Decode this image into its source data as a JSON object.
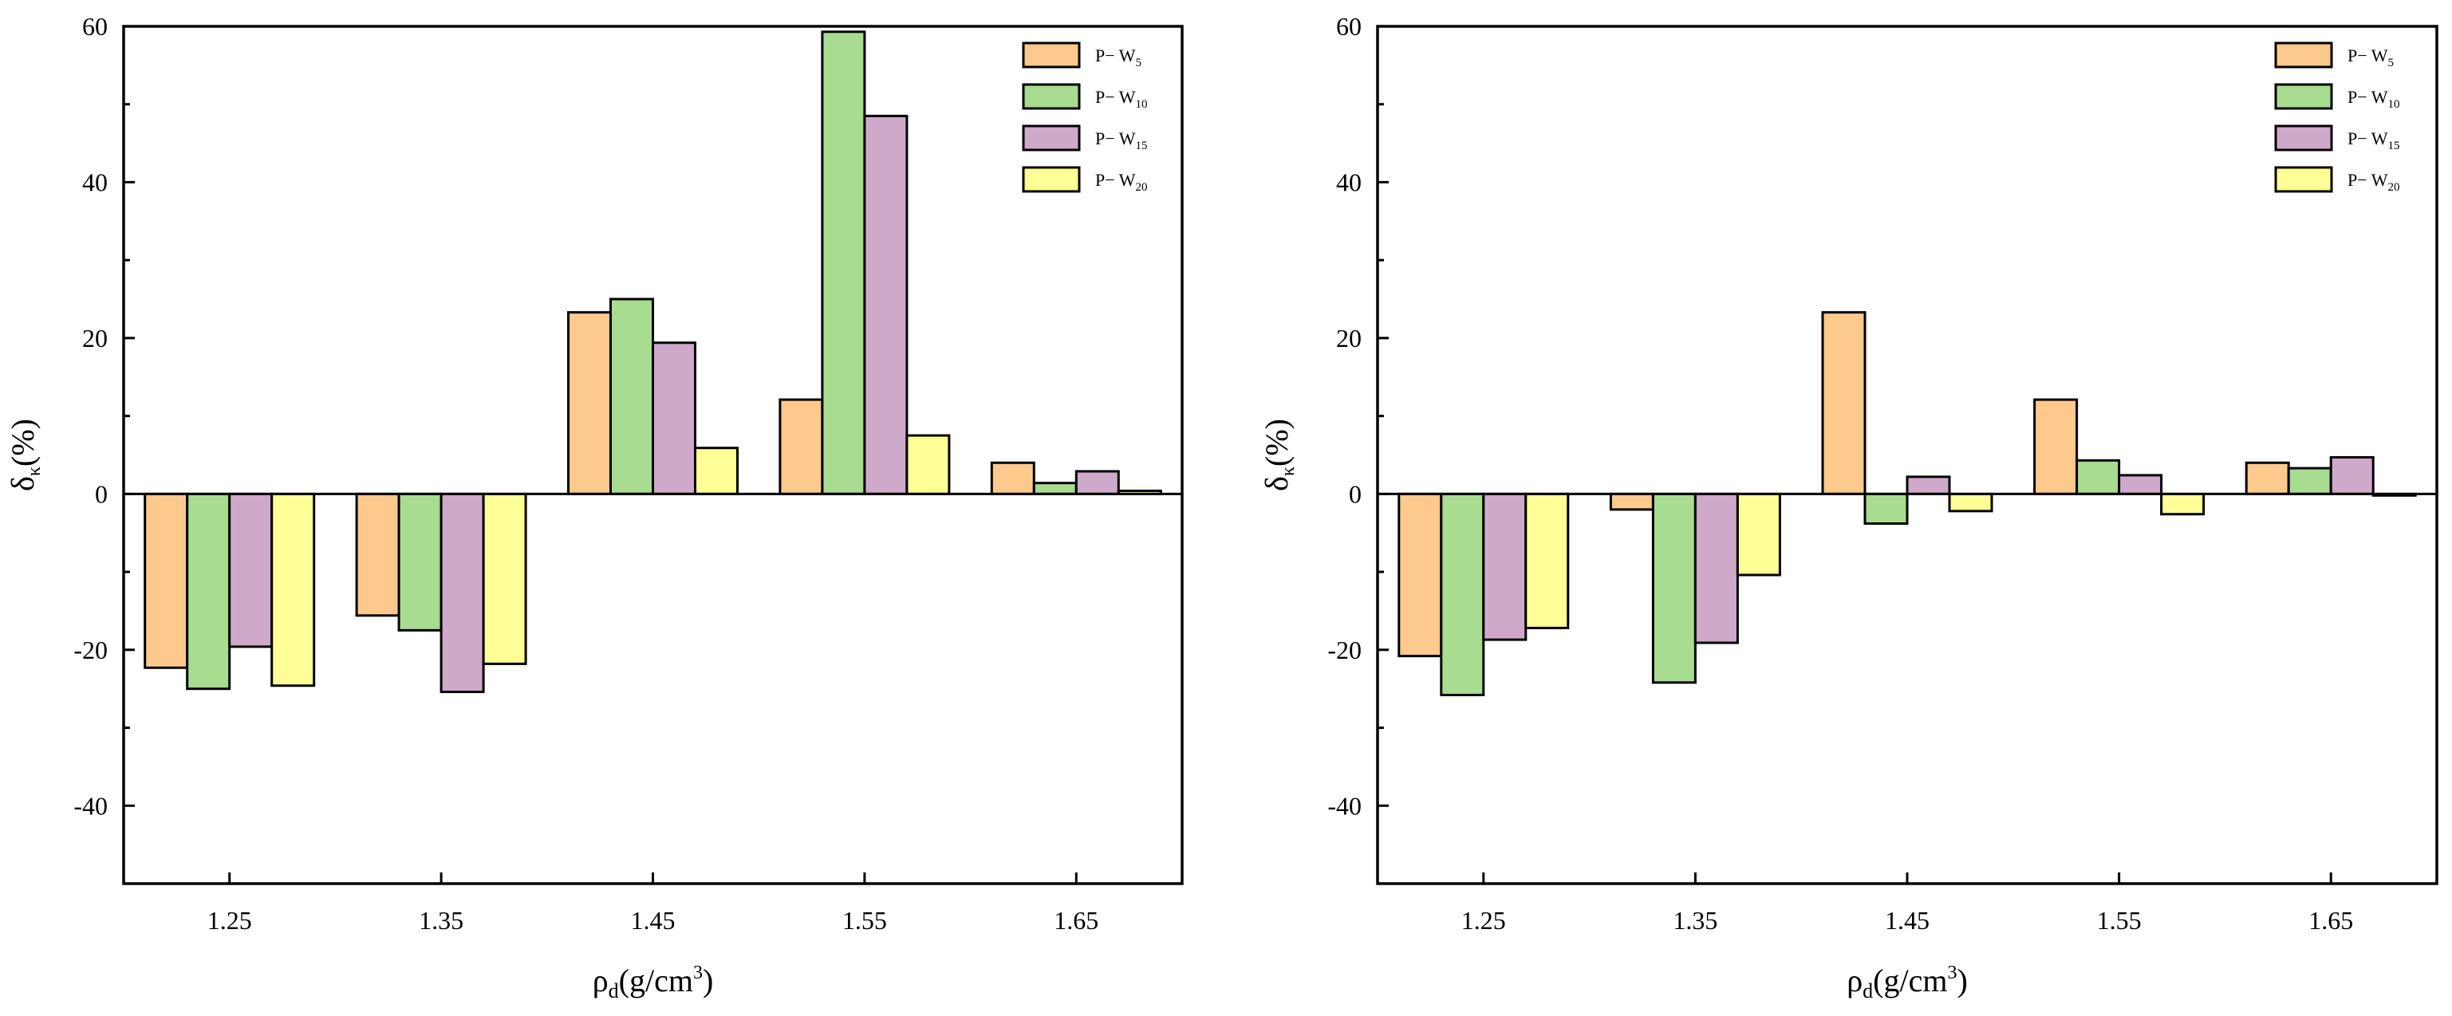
{
  "colors": {
    "P-W5": "#fdc98c",
    "P-W10": "#a8dc90",
    "P-W15": "#cfa9c9",
    "P-W20": "#fefe96",
    "axis": "#000000"
  },
  "chart_data": [
    {
      "type": "bar",
      "title": "",
      "xlabel": "ρd(g/cm3)",
      "xlabel_parts": {
        "base": "ρ",
        "sub": "d",
        "unit": "(g/cm",
        "sup": "3",
        "close": ")"
      },
      "ylabel": "δκ(%)",
      "ylabel_parts": {
        "base": "δ",
        "sub": "κ",
        "rest": "(%)"
      },
      "ylim": [
        -50,
        60
      ],
      "yticks": [
        -40,
        -20,
        0,
        20,
        40,
        60
      ],
      "categories": [
        "1.25",
        "1.35",
        "1.45",
        "1.55",
        "1.65"
      ],
      "legend_position": "top-right",
      "series": [
        {
          "name": "P-W5",
          "label_base": "P− W",
          "label_sub": "5",
          "color_key": "P-W5",
          "values": [
            -22.3,
            -15.6,
            23.3,
            12.1,
            4.0
          ]
        },
        {
          "name": "P-W10",
          "label_base": "P− W",
          "label_sub": "10",
          "color_key": "P-W10",
          "values": [
            -25.0,
            -17.5,
            25.0,
            59.3,
            1.4
          ]
        },
        {
          "name": "P-W15",
          "label_base": "P− W",
          "label_sub": "15",
          "color_key": "P-W15",
          "values": [
            -19.6,
            -25.4,
            19.4,
            48.5,
            2.9
          ]
        },
        {
          "name": "P-W20",
          "label_base": "P− W",
          "label_sub": "20",
          "color_key": "P-W20",
          "values": [
            -24.6,
            -21.8,
            5.9,
            7.5,
            0.4
          ]
        }
      ]
    },
    {
      "type": "bar",
      "title": "",
      "xlabel": "ρd(g/cm3)",
      "xlabel_parts": {
        "base": "ρ",
        "sub": "d",
        "unit": "(g/cm",
        "sup": "3",
        "close": ")"
      },
      "ylabel": "δκ(%)",
      "ylabel_parts": {
        "base": "δ",
        "sub": "κ",
        "rest": "(%)"
      },
      "ylim": [
        -50,
        60
      ],
      "yticks": [
        -40,
        -20,
        0,
        20,
        40,
        60
      ],
      "categories": [
        "1.25",
        "1.35",
        "1.45",
        "1.55",
        "1.65"
      ],
      "legend_position": "top-right",
      "series": [
        {
          "name": "P-W5",
          "label_base": "P− W",
          "label_sub": "5",
          "color_key": "P-W5",
          "values": [
            -20.8,
            -2.0,
            23.3,
            12.1,
            4.0
          ]
        },
        {
          "name": "P-W10",
          "label_base": "P− W",
          "label_sub": "10",
          "color_key": "P-W10",
          "values": [
            -25.8,
            -24.2,
            -3.8,
            4.3,
            3.3
          ]
        },
        {
          "name": "P-W15",
          "label_base": "P− W",
          "label_sub": "15",
          "color_key": "P-W15",
          "values": [
            -18.7,
            -19.1,
            2.2,
            2.4,
            4.7
          ]
        },
        {
          "name": "P-W20",
          "label_base": "P− W",
          "label_sub": "20",
          "color_key": "P-W20",
          "values": [
            -17.2,
            -10.4,
            -2.2,
            -2.6,
            -0.2
          ]
        }
      ]
    }
  ]
}
